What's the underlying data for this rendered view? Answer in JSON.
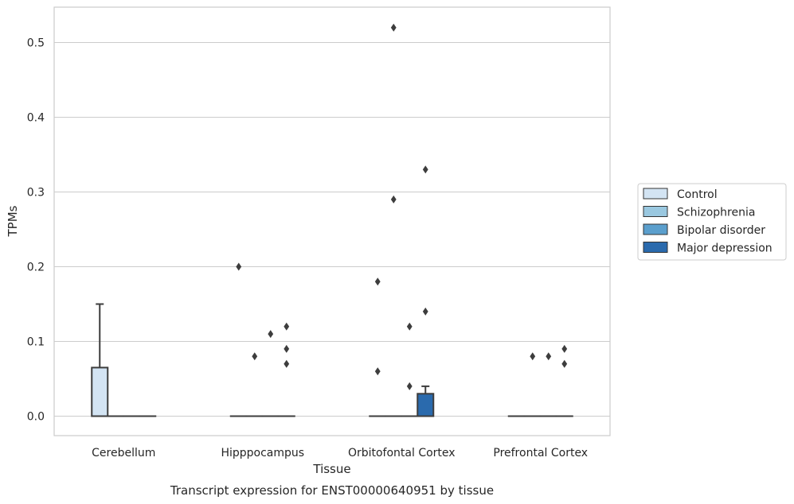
{
  "chart_data": {
    "type": "box",
    "caption": "Transcript expression for ENST00000640951 by tissue",
    "xlabel": "Tissue",
    "ylabel": "TPMs",
    "ylim": [
      -0.026,
      0.547
    ],
    "yticks": [
      0.0,
      0.1,
      0.2,
      0.3,
      0.4,
      0.5
    ],
    "ytick_labels": [
      "0.0",
      "0.1",
      "0.2",
      "0.3",
      "0.4",
      "0.5"
    ],
    "grid": true,
    "legend_position": "right",
    "categories": [
      "Cerebellum",
      "Hipppocampus",
      "Orbitofontal Cortex",
      "Prefrontal Cortex"
    ],
    "series": [
      {
        "name": "Control",
        "color": "#d3e4f3",
        "boxes": [
          {
            "q1": 0.0,
            "median": 0.0,
            "q3": 0.065,
            "whisker_low": 0.0,
            "whisker_high": 0.15,
            "outliers": []
          },
          {
            "q1": 0.0,
            "median": 0.0,
            "q3": 0.0,
            "whisker_low": 0.0,
            "whisker_high": 0.0,
            "outliers": [
              0.2
            ]
          },
          {
            "q1": 0.0,
            "median": 0.0,
            "q3": 0.0,
            "whisker_low": 0.0,
            "whisker_high": 0.0,
            "outliers": [
              0.18,
              0.06
            ]
          },
          {
            "q1": 0.0,
            "median": 0.0,
            "q3": 0.0,
            "whisker_low": 0.0,
            "whisker_high": 0.0,
            "outliers": []
          }
        ]
      },
      {
        "name": "Schizophrenia",
        "color": "#9ac8e0",
        "boxes": [
          {
            "q1": 0.0,
            "median": 0.0,
            "q3": 0.0,
            "whisker_low": 0.0,
            "whisker_high": 0.0,
            "outliers": []
          },
          {
            "q1": 0.0,
            "median": 0.0,
            "q3": 0.0,
            "whisker_low": 0.0,
            "whisker_high": 0.0,
            "outliers": [
              0.08
            ]
          },
          {
            "q1": 0.0,
            "median": 0.0,
            "q3": 0.0,
            "whisker_low": 0.0,
            "whisker_high": 0.0,
            "outliers": [
              0.52,
              0.29
            ]
          },
          {
            "q1": 0.0,
            "median": 0.0,
            "q3": 0.0,
            "whisker_low": 0.0,
            "whisker_high": 0.0,
            "outliers": [
              0.08
            ]
          }
        ]
      },
      {
        "name": "Bipolar disorder",
        "color": "#5b9fcd",
        "boxes": [
          {
            "q1": 0.0,
            "median": 0.0,
            "q3": 0.0,
            "whisker_low": 0.0,
            "whisker_high": 0.0,
            "outliers": []
          },
          {
            "q1": 0.0,
            "median": 0.0,
            "q3": 0.0,
            "whisker_low": 0.0,
            "whisker_high": 0.0,
            "outliers": [
              0.11
            ]
          },
          {
            "q1": 0.0,
            "median": 0.0,
            "q3": 0.0,
            "whisker_low": 0.0,
            "whisker_high": 0.0,
            "outliers": [
              0.12,
              0.04
            ]
          },
          {
            "q1": 0.0,
            "median": 0.0,
            "q3": 0.0,
            "whisker_low": 0.0,
            "whisker_high": 0.0,
            "outliers": [
              0.08
            ]
          }
        ]
      },
      {
        "name": "Major depression",
        "color": "#2a6aad",
        "boxes": [
          {
            "q1": 0.0,
            "median": 0.0,
            "q3": 0.0,
            "whisker_low": 0.0,
            "whisker_high": 0.0,
            "outliers": []
          },
          {
            "q1": 0.0,
            "median": 0.0,
            "q3": 0.0,
            "whisker_low": 0.0,
            "whisker_high": 0.0,
            "outliers": [
              0.12,
              0.09,
              0.07
            ]
          },
          {
            "q1": 0.0,
            "median": 0.0,
            "q3": 0.03,
            "whisker_low": 0.0,
            "whisker_high": 0.04,
            "outliers": [
              0.33,
              0.14
            ]
          },
          {
            "q1": 0.0,
            "median": 0.0,
            "q3": 0.0,
            "whisker_low": 0.0,
            "whisker_high": 0.0,
            "outliers": [
              0.09,
              0.07
            ]
          }
        ]
      }
    ]
  }
}
